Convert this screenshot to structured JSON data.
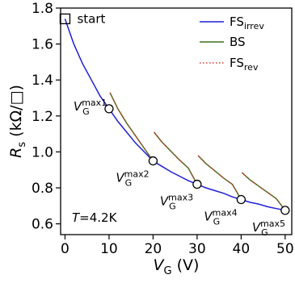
{
  "chart_data": {
    "type": "line",
    "xlabel": {
      "main": "V",
      "sub": "G",
      "unit": " (V)"
    },
    "ylabel": {
      "main": "R",
      "sub": "s",
      "unit": " (kΩ/□)"
    },
    "xlim": [
      -1,
      51.5
    ],
    "ylim": [
      0.54,
      1.8
    ],
    "x_ticks": [
      0,
      10,
      20,
      30,
      40,
      50
    ],
    "y_ticks": [
      0.6,
      0.8,
      1.0,
      1.2,
      1.4,
      1.6,
      1.8
    ],
    "y_tick_labels": [
      "0.6",
      "0.8",
      "1.0",
      "1.2",
      "1.4",
      "1.6",
      "1.8"
    ],
    "grid": false,
    "legend_position": "top-right",
    "colors": {
      "fs_irrev": "#1f1fd6",
      "bs": "#3f6f1e",
      "fs_rev": "#e0392b"
    },
    "start_point": {
      "x": 0,
      "y": 1.74,
      "label": "start"
    },
    "temperature_label": {
      "prefix": "T",
      "text": "=4.2K"
    },
    "series": [
      {
        "name": "FS",
        "name_sub": "irrev",
        "style": "solid",
        "color": "#1f1fd6",
        "points": [
          [
            0,
            1.74
          ],
          [
            2,
            1.6
          ],
          [
            4,
            1.49
          ],
          [
            6,
            1.4
          ],
          [
            8,
            1.31
          ],
          [
            10,
            1.24
          ],
          [
            12,
            1.17
          ],
          [
            14,
            1.11
          ],
          [
            16,
            1.05
          ],
          [
            18,
            1.0
          ],
          [
            20,
            0.95
          ],
          [
            22,
            0.92
          ],
          [
            24,
            0.89
          ],
          [
            26,
            0.865
          ],
          [
            28,
            0.84
          ],
          [
            30,
            0.82
          ],
          [
            32,
            0.8
          ],
          [
            34,
            0.785
          ],
          [
            36,
            0.77
          ],
          [
            38,
            0.75
          ],
          [
            40,
            0.735
          ],
          [
            42,
            0.72
          ],
          [
            44,
            0.71
          ],
          [
            46,
            0.695
          ],
          [
            48,
            0.685
          ],
          [
            50,
            0.675
          ]
        ]
      },
      {
        "name": "BS",
        "style": "solid",
        "color": "#3f6f1e",
        "segments": [
          [
            [
              10.2,
              1.33
            ],
            [
              12,
              1.24
            ],
            [
              14,
              1.16
            ],
            [
              16,
              1.09
            ],
            [
              18,
              1.02
            ],
            [
              20,
              0.95
            ]
          ],
          [
            [
              20.2,
              1.11
            ],
            [
              22,
              1.055
            ],
            [
              24,
              1.005
            ],
            [
              26,
              0.955
            ],
            [
              28,
              0.91
            ],
            [
              30,
              0.82
            ]
          ],
          [
            [
              30.2,
              0.98
            ],
            [
              32,
              0.935
            ],
            [
              34,
              0.895
            ],
            [
              36,
              0.855
            ],
            [
              38,
              0.82
            ],
            [
              40,
              0.735
            ]
          ],
          [
            [
              40.2,
              0.885
            ],
            [
              42,
              0.845
            ],
            [
              44,
              0.81
            ],
            [
              46,
              0.775
            ],
            [
              48,
              0.74
            ],
            [
              50,
              0.675
            ]
          ]
        ]
      },
      {
        "name": "FS",
        "name_sub": "rev",
        "style": "dotted",
        "color": "#e0392b",
        "segments": [
          [
            [
              10.2,
              1.33
            ],
            [
              12,
              1.24
            ],
            [
              14,
              1.16
            ],
            [
              16,
              1.09
            ],
            [
              18,
              1.02
            ],
            [
              20,
              0.95
            ]
          ],
          [
            [
              20.2,
              1.11
            ],
            [
              22,
              1.055
            ],
            [
              24,
              1.005
            ],
            [
              26,
              0.955
            ],
            [
              28,
              0.91
            ],
            [
              30,
              0.82
            ]
          ],
          [
            [
              30.2,
              0.98
            ],
            [
              32,
              0.935
            ],
            [
              34,
              0.895
            ],
            [
              36,
              0.855
            ],
            [
              38,
              0.82
            ],
            [
              40,
              0.735
            ]
          ],
          [
            [
              40.2,
              0.885
            ],
            [
              42,
              0.845
            ],
            [
              44,
              0.81
            ],
            [
              46,
              0.775
            ],
            [
              48,
              0.74
            ],
            [
              50,
              0.675
            ]
          ]
        ]
      }
    ],
    "markers": [
      {
        "x": 10,
        "y": 1.24,
        "label_main": "V",
        "label_sub": "G",
        "label_sup": "max1"
      },
      {
        "x": 20,
        "y": 0.95,
        "label_main": "V",
        "label_sub": "G",
        "label_sup": "max2"
      },
      {
        "x": 30,
        "y": 0.82,
        "label_main": "V",
        "label_sub": "G",
        "label_sup": "max3"
      },
      {
        "x": 40,
        "y": 0.735,
        "label_main": "V",
        "label_sub": "G",
        "label_sup": "max4"
      },
      {
        "x": 50,
        "y": 0.675,
        "label_main": "V",
        "label_sub": "G",
        "label_sup": "max5"
      }
    ]
  }
}
